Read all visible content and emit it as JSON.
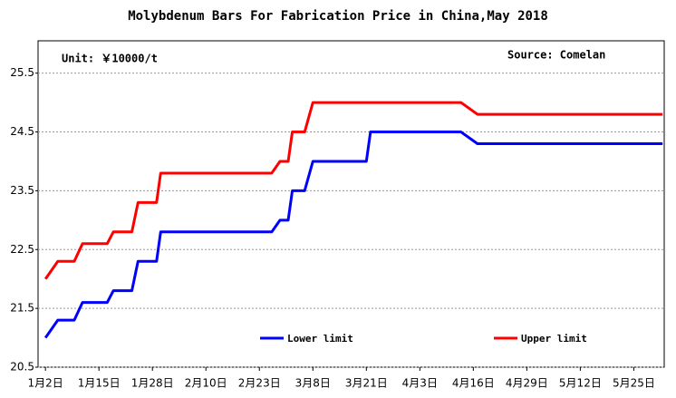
{
  "chart_data": {
    "type": "line",
    "title": "Molybdenum Bars For Fabrication Price in China,May 2018",
    "unit": "Unit: ￥10000/t",
    "source": "Source: Comelan",
    "xlim": [
      -1.8,
      150.4
    ],
    "xticks": [
      {
        "value": 0,
        "label": "1月2日"
      },
      {
        "value": 13,
        "label": "1月15日"
      },
      {
        "value": 26,
        "label": "1月28日"
      },
      {
        "value": 39,
        "label": "2月10日"
      },
      {
        "value": 52,
        "label": "2月23日"
      },
      {
        "value": 65,
        "label": "3月8日"
      },
      {
        "value": 78,
        "label": "3月21日"
      },
      {
        "value": 91,
        "label": "4月3日"
      },
      {
        "value": 104,
        "label": "4月16日"
      },
      {
        "value": 117,
        "label": "4月29日"
      },
      {
        "value": 130,
        "label": "5月12日"
      },
      {
        "value": 143,
        "label": "5月25日"
      }
    ],
    "ylim": [
      20.5,
      26.05
    ],
    "yticks": [
      20.5,
      21.5,
      22.5,
      23.5,
      24.5,
      25.5
    ],
    "grid": true,
    "series": [
      {
        "name": "Lower limit",
        "color": "#0000ff",
        "x": [
          0,
          1,
          3,
          7,
          9,
          15,
          16.5,
          21,
          22.5,
          27,
          28,
          55,
          57,
          59,
          60,
          63,
          65,
          78,
          79,
          101,
          105,
          150
        ],
        "values": [
          21.0,
          21.1,
          21.3,
          21.3,
          21.6,
          21.6,
          21.8,
          21.8,
          22.3,
          22.3,
          22.8,
          22.8,
          23.0,
          23.0,
          23.5,
          23.5,
          24.0,
          24.0,
          24.5,
          24.5,
          24.3,
          24.3
        ]
      },
      {
        "name": "Upper limit",
        "color": "#ff0000",
        "x": [
          0,
          1,
          3,
          7,
          9,
          15,
          16.5,
          21,
          22.5,
          27,
          28,
          55,
          57,
          59,
          60,
          63,
          65,
          101,
          105,
          150
        ],
        "values": [
          22.0,
          22.1,
          22.3,
          22.3,
          22.6,
          22.6,
          22.8,
          22.8,
          23.3,
          23.3,
          23.8,
          23.8,
          24.0,
          24.0,
          24.5,
          24.5,
          25.0,
          25.0,
          24.8,
          24.8
        ]
      }
    ]
  }
}
